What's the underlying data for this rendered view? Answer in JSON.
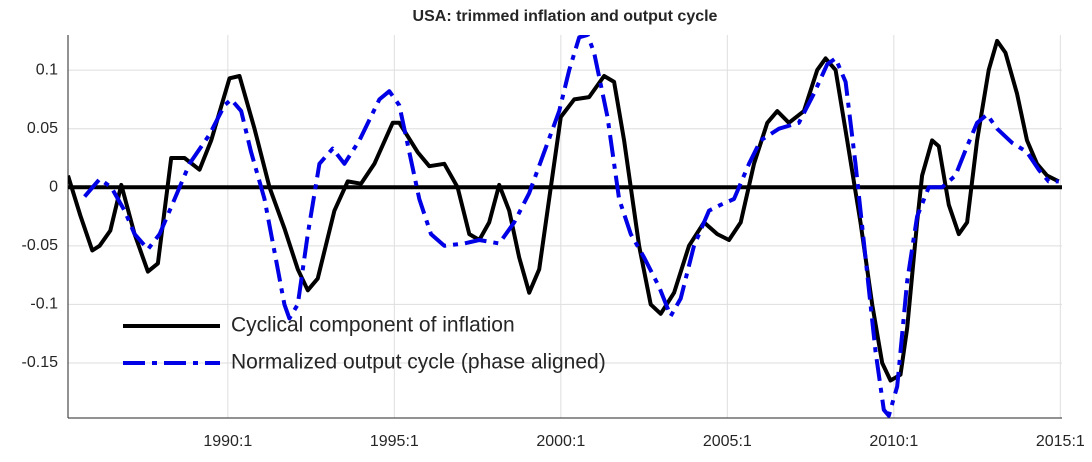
{
  "chart_data": {
    "type": "line",
    "title": "USA: trimmed inflation and output cycle",
    "xlim": [
      1985.2,
      2015.05
    ],
    "ylim": [
      -0.197,
      0.13
    ],
    "xticks": [
      {
        "value": 1990,
        "label": "1990:1"
      },
      {
        "value": 1995,
        "label": "1995:1"
      },
      {
        "value": 2000,
        "label": "2000:1"
      },
      {
        "value": 2005,
        "label": "2005:1"
      },
      {
        "value": 2010,
        "label": "2010:1"
      },
      {
        "value": 2015,
        "label": "2015:1"
      }
    ],
    "yticks": [
      -0.15,
      -0.1,
      -0.05,
      0,
      0.05,
      0.1
    ],
    "grid": true,
    "legend": "lower-left",
    "series": [
      {
        "name": "Cyclical component of inflation",
        "color": "#000000",
        "linestyle": "solid",
        "x": [
          1985.2,
          1985.57,
          1985.93,
          1986.15,
          1986.47,
          1986.8,
          1987.2,
          1987.6,
          1987.9,
          1988.3,
          1988.7,
          1989.15,
          1989.5,
          1990.05,
          1990.35,
          1990.8,
          1991.25,
          1991.7,
          1992.1,
          1992.4,
          1992.7,
          1993.2,
          1993.6,
          1994.0,
          1994.4,
          1994.95,
          1995.15,
          1995.7,
          1996.05,
          1996.5,
          1996.9,
          1997.25,
          1997.55,
          1997.85,
          1998.15,
          1998.45,
          1998.75,
          1999.05,
          1999.35,
          1999.7,
          2000.0,
          2000.4,
          2000.85,
          2001.3,
          2001.6,
          2001.9,
          2002.35,
          2002.7,
          2003.0,
          2003.4,
          2003.85,
          2004.3,
          2004.7,
          2005.05,
          2005.4,
          2005.8,
          2006.2,
          2006.5,
          2006.85,
          2007.3,
          2007.7,
          2007.95,
          2008.25,
          2008.6,
          2009.0,
          2009.35,
          2009.65,
          2009.9,
          2010.2,
          2010.4,
          2010.7,
          2010.85,
          2011.15,
          2011.35,
          2011.65,
          2011.95,
          2012.2,
          2012.5,
          2012.85,
          2013.1,
          2013.35,
          2013.7,
          2014.0,
          2014.3,
          2014.6,
          2014.95
        ],
        "values": [
          0.01,
          -0.024,
          -0.054,
          -0.05,
          -0.037,
          0.002,
          -0.04,
          -0.072,
          -0.065,
          0.025,
          0.025,
          0.015,
          0.04,
          0.093,
          0.095,
          0.05,
          0.0,
          -0.035,
          -0.07,
          -0.088,
          -0.078,
          -0.02,
          0.005,
          0.003,
          0.02,
          0.055,
          0.055,
          0.03,
          0.018,
          0.02,
          0.0,
          -0.04,
          -0.045,
          -0.03,
          0.002,
          -0.02,
          -0.06,
          -0.09,
          -0.07,
          0.0,
          0.06,
          0.075,
          0.077,
          0.095,
          0.09,
          0.04,
          -0.05,
          -0.1,
          -0.108,
          -0.09,
          -0.05,
          -0.03,
          -0.04,
          -0.045,
          -0.03,
          0.02,
          0.055,
          0.065,
          0.055,
          0.065,
          0.1,
          0.11,
          0.1,
          0.04,
          -0.03,
          -0.1,
          -0.15,
          -0.165,
          -0.16,
          -0.12,
          -0.03,
          0.01,
          0.04,
          0.035,
          -0.015,
          -0.04,
          -0.03,
          0.04,
          0.1,
          0.125,
          0.115,
          0.08,
          0.04,
          0.02,
          0.01,
          0.005
        ]
      },
      {
        "name": "Normalized output cycle (phase aligned)",
        "color": "#0000e6",
        "linestyle": "dashdot",
        "x": [
          1985.7,
          1986.15,
          1986.5,
          1986.9,
          1987.2,
          1987.6,
          1987.95,
          1988.4,
          1988.85,
          1989.45,
          1989.9,
          1990.1,
          1990.4,
          1990.7,
          1991.1,
          1991.4,
          1991.7,
          1991.85,
          1992.1,
          1992.4,
          1992.75,
          1993.15,
          1993.5,
          1993.95,
          1994.55,
          1994.85,
          1995.15,
          1995.45,
          1995.75,
          1996.1,
          1996.5,
          1997.1,
          1997.55,
          1998.15,
          1998.6,
          1999.05,
          1999.5,
          1999.95,
          2000.25,
          2000.55,
          2000.8,
          2001.0,
          2001.4,
          2001.75,
          2002.1,
          2002.5,
          2002.95,
          2003.3,
          2003.6,
          2004.0,
          2004.45,
          2004.8,
          2005.2,
          2005.65,
          2006.0,
          2006.55,
          2007.15,
          2007.6,
          2008.0,
          2008.25,
          2008.55,
          2008.85,
          2009.15,
          2009.45,
          2009.7,
          2009.85,
          2010.1,
          2010.4,
          2010.7,
          2011.05,
          2011.45,
          2011.85,
          2012.2,
          2012.5,
          2012.8,
          2013.1,
          2013.55,
          2014.0,
          2014.35,
          2014.65,
          2014.95
        ],
        "values": [
          -0.008,
          0.007,
          0.0,
          -0.02,
          -0.04,
          -0.053,
          -0.04,
          -0.01,
          0.02,
          0.045,
          0.07,
          0.075,
          0.065,
          0.03,
          -0.01,
          -0.055,
          -0.1,
          -0.112,
          -0.1,
          -0.04,
          0.02,
          0.033,
          0.02,
          0.04,
          0.075,
          0.082,
          0.07,
          0.03,
          -0.01,
          -0.04,
          -0.05,
          -0.048,
          -0.045,
          -0.048,
          -0.03,
          -0.005,
          0.03,
          0.065,
          0.1,
          0.128,
          0.13,
          0.115,
          0.06,
          -0.01,
          -0.04,
          -0.06,
          -0.085,
          -0.11,
          -0.095,
          -0.05,
          -0.02,
          -0.015,
          -0.01,
          0.02,
          0.04,
          0.05,
          0.055,
          0.08,
          0.105,
          0.11,
          0.09,
          0.02,
          -0.06,
          -0.14,
          -0.19,
          -0.195,
          -0.17,
          -0.08,
          -0.025,
          0.0,
          0.0,
          0.01,
          0.035,
          0.055,
          0.062,
          0.05,
          0.038,
          0.03,
          0.015,
          0.005,
          0.005
        ]
      }
    ]
  }
}
